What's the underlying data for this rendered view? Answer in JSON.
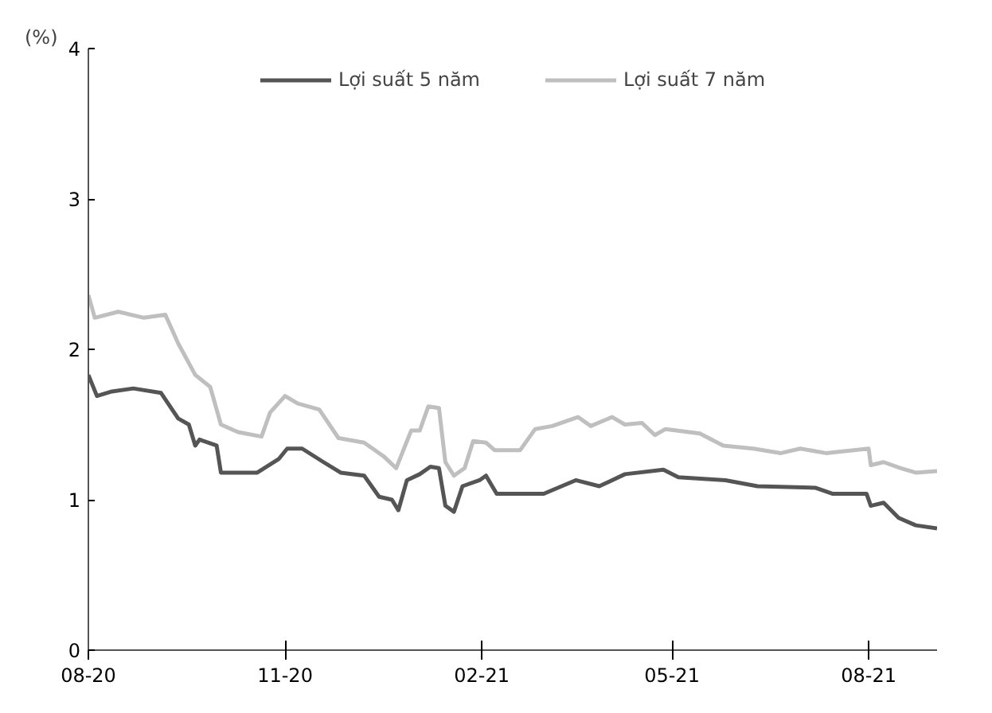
{
  "chart_data": {
    "type": "line",
    "ylabel": "(%)",
    "xlim": [
      "2020-08-01",
      "2021-09-02"
    ],
    "ylim": [
      0,
      4
    ],
    "yticks": [
      0,
      1,
      2,
      3,
      4
    ],
    "xticks": [
      {
        "value": "2020-08-01",
        "label": "08-20"
      },
      {
        "value": "2020-11-01",
        "label": "11-20"
      },
      {
        "value": "2021-02-01",
        "label": "02-21"
      },
      {
        "value": "2021-05-01",
        "label": "05-21"
      },
      {
        "value": "2021-08-01",
        "label": "08-21"
      }
    ],
    "grid": false,
    "legend": "top",
    "line_style": "solid",
    "marker": "none",
    "series": [
      {
        "name": "Lợi suất 5 năm",
        "color": "#555555",
        "x": [
          "2020-08-01",
          "2020-08-05",
          "2020-08-12",
          "2020-08-22",
          "2020-09-04",
          "2020-09-12",
          "2020-09-17",
          "2020-09-20",
          "2020-09-22",
          "2020-09-30",
          "2020-10-02",
          "2020-10-19",
          "2020-10-29",
          "2020-11-02",
          "2020-11-09",
          "2020-11-19",
          "2020-11-27",
          "2020-12-08",
          "2020-12-15",
          "2020-12-21",
          "2020-12-24",
          "2020-12-28",
          "2021-01-03",
          "2021-01-08",
          "2021-01-12",
          "2021-01-15",
          "2021-01-19",
          "2021-01-23",
          "2021-01-31",
          "2021-02-03",
          "2021-02-08",
          "2021-02-24",
          "2021-03-02",
          "2021-03-17",
          "2021-03-28",
          "2021-04-09",
          "2021-04-27",
          "2021-05-04",
          "2021-05-26",
          "2021-06-10",
          "2021-07-07",
          "2021-07-15",
          "2021-07-31",
          "2021-08-02",
          "2021-08-08",
          "2021-08-15",
          "2021-08-23",
          "2021-09-02"
        ],
        "values": [
          1.83,
          1.69,
          1.72,
          1.74,
          1.71,
          1.54,
          1.5,
          1.36,
          1.4,
          1.36,
          1.18,
          1.18,
          1.27,
          1.34,
          1.34,
          1.25,
          1.18,
          1.16,
          1.02,
          1.0,
          0.93,
          1.13,
          1.17,
          1.22,
          1.21,
          0.96,
          0.92,
          1.09,
          1.13,
          1.16,
          1.04,
          1.04,
          1.04,
          1.13,
          1.09,
          1.17,
          1.2,
          1.15,
          1.13,
          1.09,
          1.08,
          1.04,
          1.04,
          0.96,
          0.98,
          0.88,
          0.83,
          0.81
        ]
      },
      {
        "name": "Lợi suất 7 năm",
        "color": "#bfbfbf",
        "x": [
          "2020-08-01",
          "2020-08-04",
          "2020-08-15",
          "2020-08-27",
          "2020-09-06",
          "2020-09-12",
          "2020-09-20",
          "2020-09-27",
          "2020-10-02",
          "2020-10-10",
          "2020-10-21",
          "2020-10-25",
          "2020-11-01",
          "2020-11-07",
          "2020-11-17",
          "2020-11-26",
          "2020-12-08",
          "2020-12-17",
          "2020-12-23",
          "2020-12-30",
          "2021-01-03",
          "2021-01-07",
          "2021-01-12",
          "2021-01-15",
          "2021-01-19",
          "2021-01-24",
          "2021-01-28",
          "2021-02-03",
          "2021-02-07",
          "2021-02-19",
          "2021-02-26",
          "2021-03-06",
          "2021-03-18",
          "2021-03-24",
          "2021-04-03",
          "2021-04-09",
          "2021-04-17",
          "2021-04-23",
          "2021-04-28",
          "2021-05-14",
          "2021-05-25",
          "2021-06-08",
          "2021-06-21",
          "2021-06-30",
          "2021-07-12",
          "2021-08-01",
          "2021-08-02",
          "2021-08-08",
          "2021-08-16",
          "2021-08-23",
          "2021-09-02"
        ],
        "values": [
          2.36,
          2.21,
          2.25,
          2.21,
          2.23,
          2.04,
          1.83,
          1.75,
          1.5,
          1.45,
          1.42,
          1.58,
          1.69,
          1.64,
          1.6,
          1.41,
          1.38,
          1.29,
          1.21,
          1.46,
          1.46,
          1.62,
          1.61,
          1.25,
          1.16,
          1.21,
          1.39,
          1.38,
          1.33,
          1.33,
          1.47,
          1.49,
          1.55,
          1.49,
          1.55,
          1.5,
          1.51,
          1.43,
          1.47,
          1.44,
          1.36,
          1.34,
          1.31,
          1.34,
          1.31,
          1.34,
          1.23,
          1.25,
          1.21,
          1.18,
          1.19
        ]
      }
    ]
  }
}
